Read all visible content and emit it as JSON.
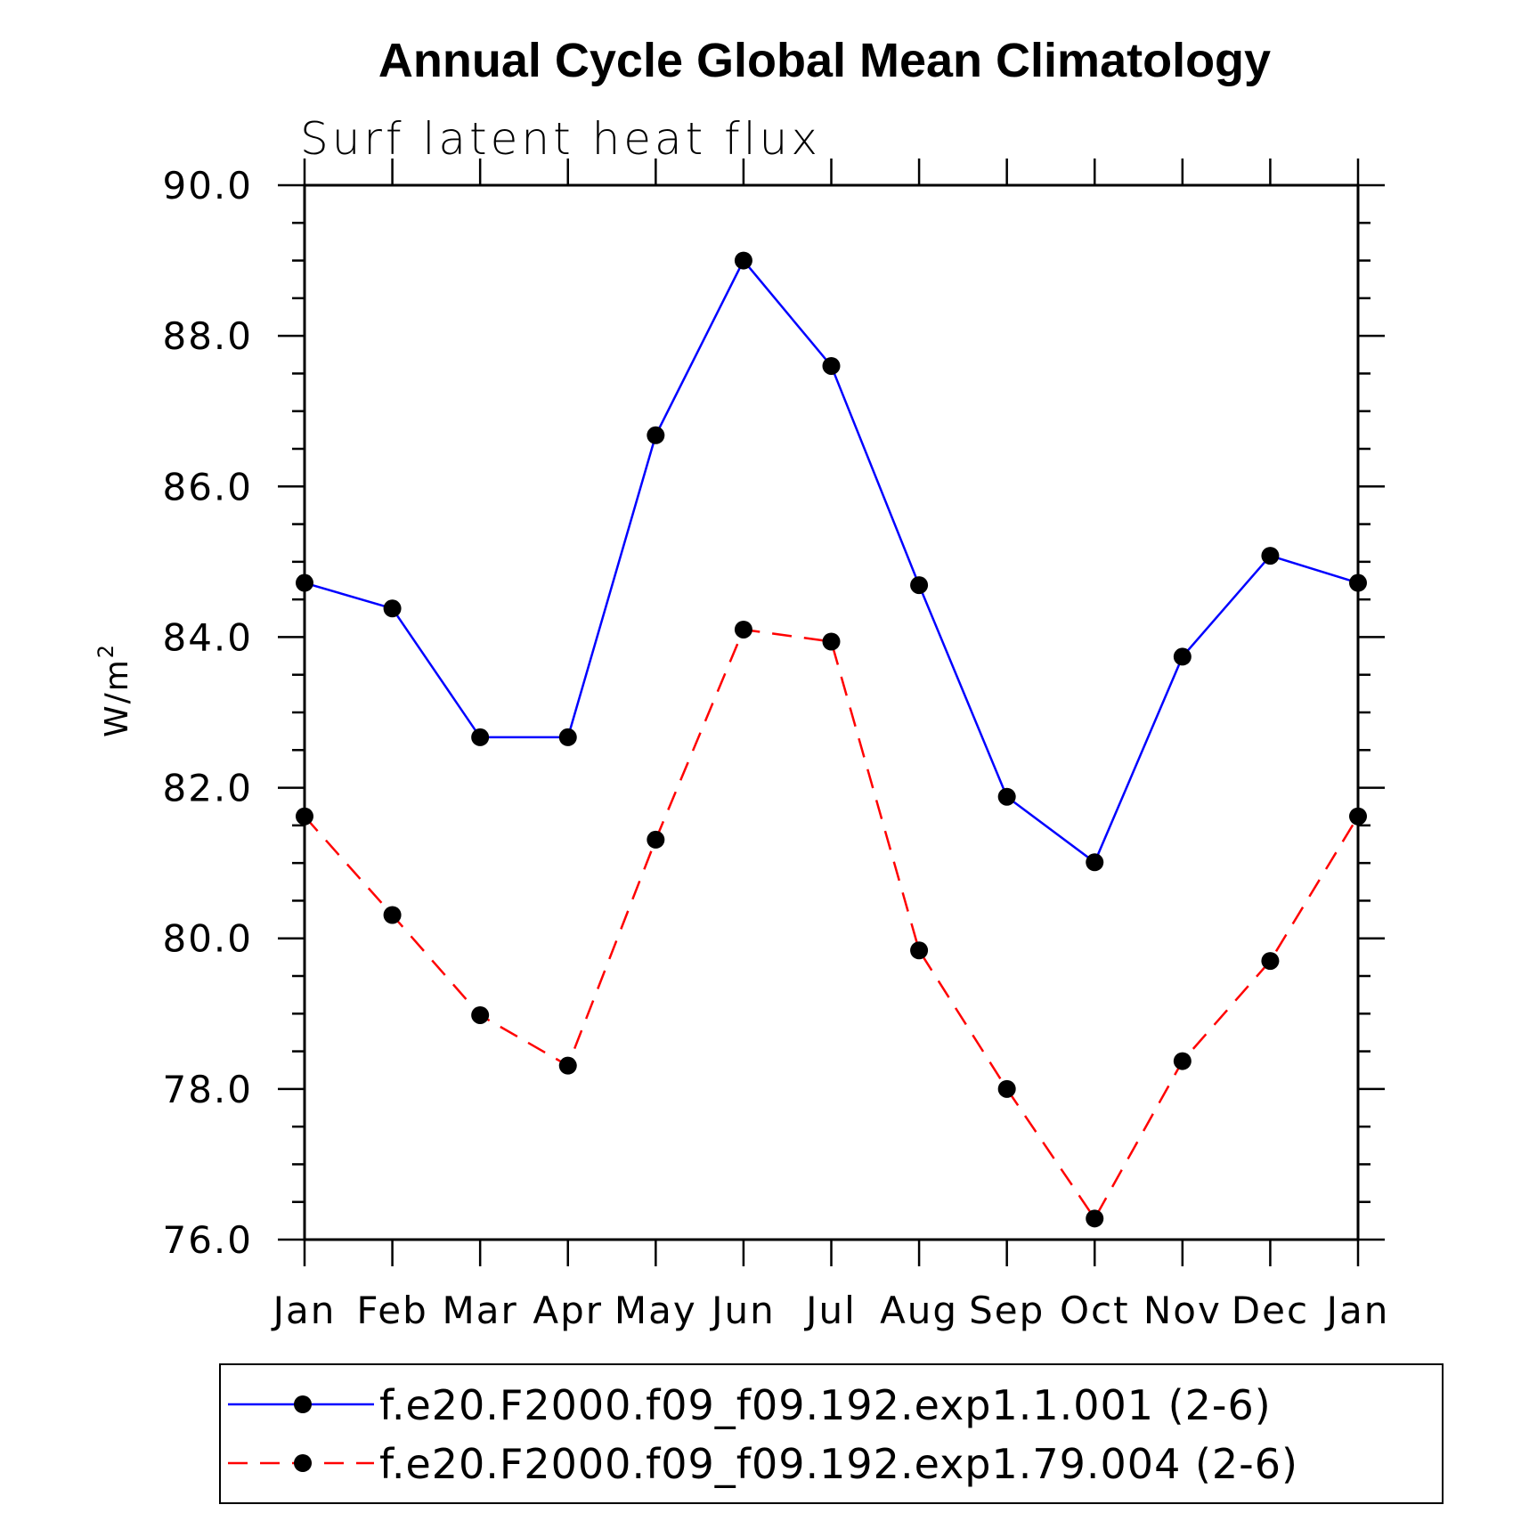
{
  "chart_data": {
    "type": "line",
    "title": "Annual Cycle Global Mean Climatology",
    "subtitle": "Surf latent heat flux",
    "ylabel": "W/m",
    "ylabel_superscript": "2",
    "xlabel": "",
    "ylim": [
      76.0,
      90.0
    ],
    "yticks": [
      "90.0",
      "88.0",
      "86.0",
      "84.0",
      "82.0",
      "80.0",
      "78.0",
      "76.0"
    ],
    "categories": [
      "Jan",
      "Feb",
      "Mar",
      "Apr",
      "May",
      "Jun",
      "Jul",
      "Aug",
      "Sep",
      "Oct",
      "Nov",
      "Dec",
      "Jan"
    ],
    "series": [
      {
        "name": "f.e20.F2000.f09_f09.192.exp1.1.001 (2-6)",
        "color": "#0000ff",
        "dash": "solid",
        "values": [
          84.72,
          84.38,
          82.67,
          82.67,
          86.68,
          89.0,
          87.6,
          84.69,
          81.88,
          81.01,
          83.74,
          85.08,
          84.72
        ]
      },
      {
        "name": "f.e20.F2000.f09_f09.192.exp1.79.004 (2-6)",
        "color": "#ff0000",
        "dash": "dashed",
        "values": [
          81.62,
          80.31,
          78.98,
          78.31,
          81.31,
          84.1,
          83.94,
          79.84,
          78.0,
          76.28,
          78.37,
          79.7,
          81.62
        ]
      }
    ],
    "marker_color": "#000000",
    "legend_position": "bottom"
  }
}
